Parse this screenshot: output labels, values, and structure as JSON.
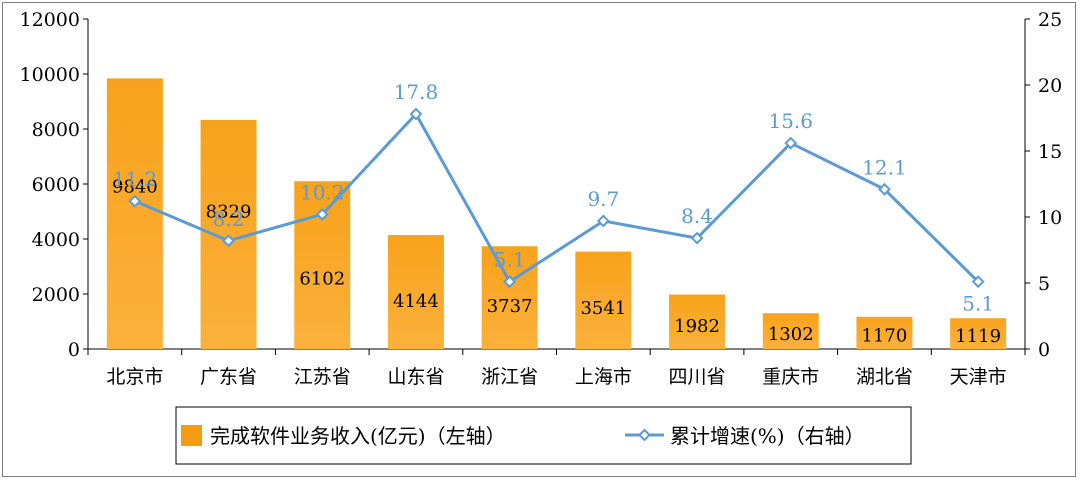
{
  "chart_data": {
    "type": "bar",
    "categories": [
      "北京市",
      "广东省",
      "江苏省",
      "山东省",
      "浙江省",
      "上海市",
      "四川省",
      "重庆市",
      "湖北省",
      "天津市"
    ],
    "series": [
      {
        "name": "完成软件业务收入(亿元)（左轴）",
        "type": "bar",
        "axis": "left",
        "values": [
          9840,
          8329,
          6102,
          4144,
          3737,
          3541,
          1982,
          1302,
          1170,
          1119
        ],
        "color": "#f39c12"
      },
      {
        "name": "累计增速(%)（右轴）",
        "type": "line",
        "axis": "right",
        "values": [
          11.2,
          8.2,
          10.2,
          17.8,
          5.1,
          9.7,
          8.4,
          15.6,
          12.1,
          5.1
        ],
        "color": "#5b9bd5"
      }
    ],
    "y_left": {
      "min": 0,
      "max": 12000,
      "ticks": [
        "0",
        "2000",
        "4000",
        "6000",
        "8000",
        "10000",
        "12000"
      ]
    },
    "y_right": {
      "min": 0,
      "max": 25,
      "ticks": [
        "0",
        "5",
        "10",
        "15",
        "20",
        "25"
      ]
    },
    "legend_position": "bottom",
    "grid": false
  }
}
